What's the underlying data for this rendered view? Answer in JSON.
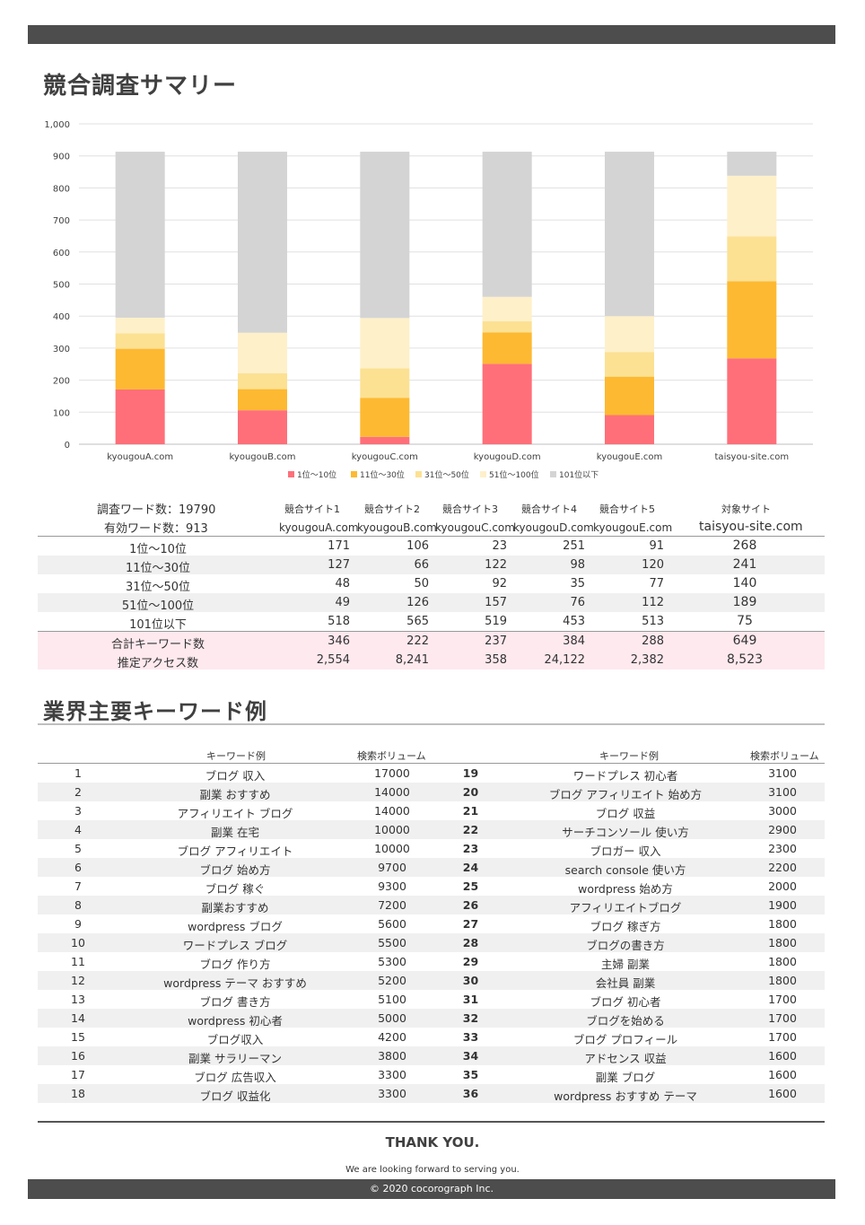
{
  "title_summary": "競合調査サマリー",
  "title_keywords": "業界主要キーワード例",
  "chart_data": {
    "type": "bar",
    "stacked": true,
    "categories": [
      "kyougouA.com",
      "kyougouB.com",
      "kyougouC.com",
      "kyougouD.com",
      "kyougouE.com",
      "taisyou-site.com"
    ],
    "series": [
      {
        "name": "1位～10位",
        "color": "#ff6f79",
        "values": [
          171,
          106,
          23,
          251,
          91,
          268
        ]
      },
      {
        "name": "11位～30位",
        "color": "#fdb931",
        "values": [
          127,
          66,
          122,
          98,
          120,
          241
        ]
      },
      {
        "name": "31位～50位",
        "color": "#fce193",
        "values": [
          48,
          50,
          92,
          35,
          77,
          140
        ]
      },
      {
        "name": "51位～100位",
        "color": "#fef0c9",
        "values": [
          49,
          126,
          157,
          76,
          112,
          189
        ]
      },
      {
        "name": "101位以下",
        "color": "#d4d4d4",
        "values": [
          518,
          565,
          519,
          453,
          513,
          75
        ]
      }
    ],
    "ylim": [
      0,
      1000
    ],
    "yticks": [
      "0",
      "100",
      "200",
      "300",
      "400",
      "500",
      "600",
      "700",
      "800",
      "900",
      "1,000"
    ],
    "legend": "bottom",
    "grid": true
  },
  "summary": {
    "survey_words": "調査ワード数：19790",
    "valid_words": "有効ワード数：913",
    "sites": [
      {
        "label": "競合サイト1",
        "domain": "kyougouA.com"
      },
      {
        "label": "競合サイト2",
        "domain": "kyougouB.com"
      },
      {
        "label": "競合サイト3",
        "domain": "kyougouC.com"
      },
      {
        "label": "競合サイト4",
        "domain": "kyougouD.com"
      },
      {
        "label": "競合サイト5",
        "domain": "kyougouE.com"
      },
      {
        "label": "対象サイト",
        "domain": "taisyou-site.com"
      }
    ],
    "rows": [
      {
        "label": "1位～10位",
        "values": [
          "171",
          "106",
          "23",
          "251",
          "91",
          "268"
        ]
      },
      {
        "label": "11位～30位",
        "values": [
          "127",
          "66",
          "122",
          "98",
          "120",
          "241"
        ]
      },
      {
        "label": "31位～50位",
        "values": [
          "48",
          "50",
          "92",
          "35",
          "77",
          "140"
        ]
      },
      {
        "label": "51位～100位",
        "values": [
          "49",
          "126",
          "157",
          "76",
          "112",
          "189"
        ]
      },
      {
        "label": "101位以下",
        "values": [
          "518",
          "565",
          "519",
          "453",
          "513",
          "75"
        ]
      },
      {
        "label": "合計キーワード数",
        "values": [
          "346",
          "222",
          "237",
          "384",
          "288",
          "649"
        ]
      },
      {
        "label": "推定アクセス数",
        "values": [
          "2,554",
          "8,241",
          "358",
          "24,122",
          "2,382",
          "8,523"
        ]
      }
    ]
  },
  "keywords": {
    "header_keyword": "キーワード例",
    "header_volume": "検索ボリューム",
    "left": [
      {
        "no": "1",
        "kw": "ブログ 収入",
        "vol": "17000"
      },
      {
        "no": "2",
        "kw": "副業 おすすめ",
        "vol": "14000"
      },
      {
        "no": "3",
        "kw": "アフィリエイト ブログ",
        "vol": "14000"
      },
      {
        "no": "4",
        "kw": "副業 在宅",
        "vol": "10000"
      },
      {
        "no": "5",
        "kw": "ブログ アフィリエイト",
        "vol": "10000"
      },
      {
        "no": "6",
        "kw": "ブログ 始め方",
        "vol": "9700"
      },
      {
        "no": "7",
        "kw": "ブログ 稼ぐ",
        "vol": "9300"
      },
      {
        "no": "8",
        "kw": "副業おすすめ",
        "vol": "7200"
      },
      {
        "no": "9",
        "kw": "wordpress ブログ",
        "vol": "5600"
      },
      {
        "no": "10",
        "kw": "ワードプレス ブログ",
        "vol": "5500"
      },
      {
        "no": "11",
        "kw": "ブログ 作り方",
        "vol": "5300"
      },
      {
        "no": "12",
        "kw": "wordpress テーマ おすすめ",
        "vol": "5200"
      },
      {
        "no": "13",
        "kw": "ブログ 書き方",
        "vol": "5100"
      },
      {
        "no": "14",
        "kw": "wordpress 初心者",
        "vol": "5000"
      },
      {
        "no": "15",
        "kw": "ブログ収入",
        "vol": "4200"
      },
      {
        "no": "16",
        "kw": "副業 サラリーマン",
        "vol": "3800"
      },
      {
        "no": "17",
        "kw": "ブログ 広告収入",
        "vol": "3300"
      },
      {
        "no": "18",
        "kw": "ブログ 収益化",
        "vol": "3300"
      }
    ],
    "right": [
      {
        "no": "19",
        "kw": "ワードプレス 初心者",
        "vol": "3100"
      },
      {
        "no": "20",
        "kw": "ブログ アフィリエイト 始め方",
        "vol": "3100"
      },
      {
        "no": "21",
        "kw": "ブログ 収益",
        "vol": "3000"
      },
      {
        "no": "22",
        "kw": "サーチコンソール 使い方",
        "vol": "2900"
      },
      {
        "no": "23",
        "kw": "ブロガー 収入",
        "vol": "2300"
      },
      {
        "no": "24",
        "kw": "search console 使い方",
        "vol": "2200"
      },
      {
        "no": "25",
        "kw": "wordpress 始め方",
        "vol": "2000"
      },
      {
        "no": "26",
        "kw": "アフィリエイトブログ",
        "vol": "1900"
      },
      {
        "no": "27",
        "kw": "ブログ 稼ぎ方",
        "vol": "1800"
      },
      {
        "no": "28",
        "kw": "ブログの書き方",
        "vol": "1800"
      },
      {
        "no": "29",
        "kw": "主婦 副業",
        "vol": "1800"
      },
      {
        "no": "30",
        "kw": "会社員 副業",
        "vol": "1800"
      },
      {
        "no": "31",
        "kw": "ブログ 初心者",
        "vol": "1700"
      },
      {
        "no": "32",
        "kw": "ブログを始める",
        "vol": "1700"
      },
      {
        "no": "33",
        "kw": "ブログ プロフィール",
        "vol": "1700"
      },
      {
        "no": "34",
        "kw": "アドセンス 収益",
        "vol": "1600"
      },
      {
        "no": "35",
        "kw": "副業 ブログ",
        "vol": "1600"
      },
      {
        "no": "36",
        "kw": "wordpress おすすめ テーマ",
        "vol": "1600"
      }
    ]
  },
  "footer": {
    "thanks": "THANK YOU.",
    "message": "We are looking forward to serving you.",
    "copyright": "© 2020 cocorograph Inc."
  }
}
